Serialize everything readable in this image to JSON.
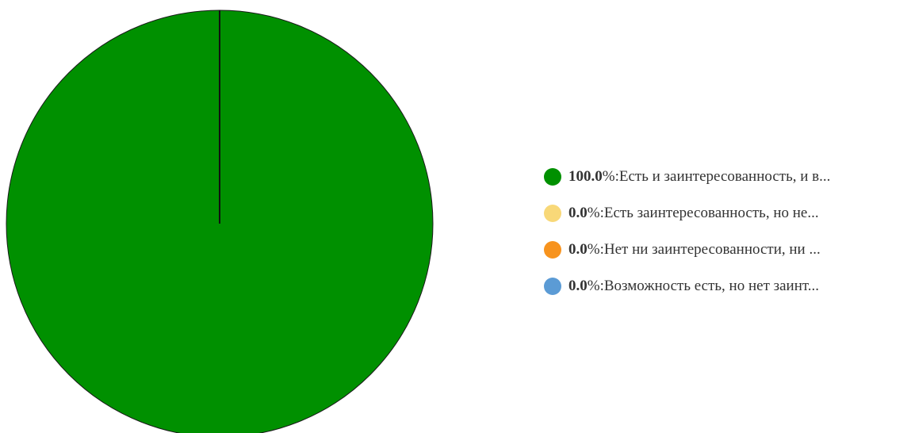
{
  "chart_data": {
    "type": "pie",
    "slices": [
      {
        "value": 100.0,
        "value_label": "100.0",
        "label": "Есть и заинтересованность, и в...",
        "color": "#009000"
      },
      {
        "value": 0.0,
        "value_label": "0.0",
        "label": "Есть заинтересованность, но не...",
        "color": "#f8d878"
      },
      {
        "value": 0.0,
        "value_label": "0.0",
        "label": "Нет ни заинтересованности, ни ...",
        "color": "#f7931e"
      },
      {
        "value": 0.0,
        "value_label": "0.0",
        "label": "Возможность есть, но нет заинт...",
        "color": "#5b9bd5"
      }
    ],
    "legend_position": "right",
    "percent_sign": "%",
    "separator": ": "
  }
}
